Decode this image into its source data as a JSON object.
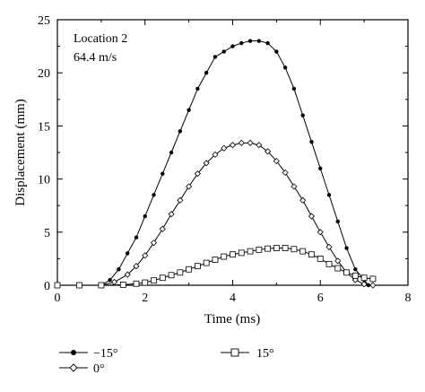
{
  "chart_data": {
    "type": "line",
    "title": "",
    "xlabel": "Time (ms)",
    "ylabel": "Displacement (mm)",
    "xlim": [
      0,
      8
    ],
    "ylim": [
      0,
      25
    ],
    "xticks": [
      "0",
      "2",
      "4",
      "6",
      "8"
    ],
    "yticks": [
      "0",
      "5",
      "10",
      "15",
      "20",
      "25"
    ],
    "grid": false,
    "legend_position": "bottom",
    "annotations": [
      "Location 2",
      "64.4 m/s"
    ],
    "series": [
      {
        "name": "−15°",
        "marker": "filled-circle",
        "x": [
          0,
          0.5,
          1.0,
          1.2,
          1.4,
          1.6,
          1.8,
          2.0,
          2.2,
          2.4,
          2.6,
          2.8,
          3.0,
          3.2,
          3.4,
          3.6,
          3.8,
          4.0,
          4.2,
          4.4,
          4.6,
          4.8,
          5.0,
          5.2,
          5.4,
          5.6,
          5.8,
          6.0,
          6.2,
          6.4,
          6.6,
          6.8,
          7.0,
          7.1
        ],
        "y": [
          0,
          0,
          0,
          0.5,
          1.5,
          3.0,
          4.5,
          6.5,
          8.5,
          10.5,
          12.5,
          14.5,
          16.5,
          18.5,
          20.0,
          21.5,
          22.0,
          22.5,
          22.8,
          23.0,
          23.0,
          22.8,
          22.0,
          20.5,
          18.5,
          16.0,
          13.5,
          11.0,
          8.5,
          6.0,
          3.5,
          1.5,
          0.5,
          0
        ]
      },
      {
        "name": "0°",
        "marker": "open-diamond",
        "x": [
          0,
          0.5,
          1.0,
          1.3,
          1.6,
          1.8,
          2.0,
          2.2,
          2.4,
          2.6,
          2.8,
          3.0,
          3.2,
          3.4,
          3.6,
          3.8,
          4.0,
          4.2,
          4.4,
          4.6,
          4.8,
          5.0,
          5.2,
          5.4,
          5.6,
          5.8,
          6.0,
          6.2,
          6.4,
          6.6,
          6.8,
          7.0,
          7.2
        ],
        "y": [
          0,
          0,
          0,
          0.3,
          1.0,
          1.8,
          2.8,
          4.0,
          5.3,
          6.7,
          8.0,
          9.3,
          10.5,
          11.5,
          12.3,
          12.9,
          13.2,
          13.4,
          13.4,
          13.2,
          12.6,
          11.7,
          10.6,
          9.3,
          8.0,
          6.5,
          5.0,
          3.6,
          2.3,
          1.2,
          0.5,
          0.1,
          0
        ]
      },
      {
        "name": "15°",
        "marker": "open-square",
        "x": [
          0,
          0.5,
          1.0,
          1.5,
          1.8,
          2.0,
          2.2,
          2.4,
          2.6,
          2.8,
          3.0,
          3.2,
          3.4,
          3.6,
          3.8,
          4.0,
          4.2,
          4.4,
          4.6,
          4.8,
          5.0,
          5.2,
          5.4,
          5.6,
          5.8,
          6.0,
          6.2,
          6.4,
          6.6,
          6.8,
          7.0,
          7.2
        ],
        "y": [
          0,
          0,
          0,
          0.05,
          0.15,
          0.25,
          0.45,
          0.7,
          0.95,
          1.2,
          1.5,
          1.8,
          2.1,
          2.4,
          2.7,
          2.9,
          3.05,
          3.2,
          3.35,
          3.45,
          3.5,
          3.5,
          3.4,
          3.2,
          2.9,
          2.5,
          2.0,
          1.6,
          1.2,
          0.9,
          0.7,
          0.6
        ]
      }
    ]
  }
}
